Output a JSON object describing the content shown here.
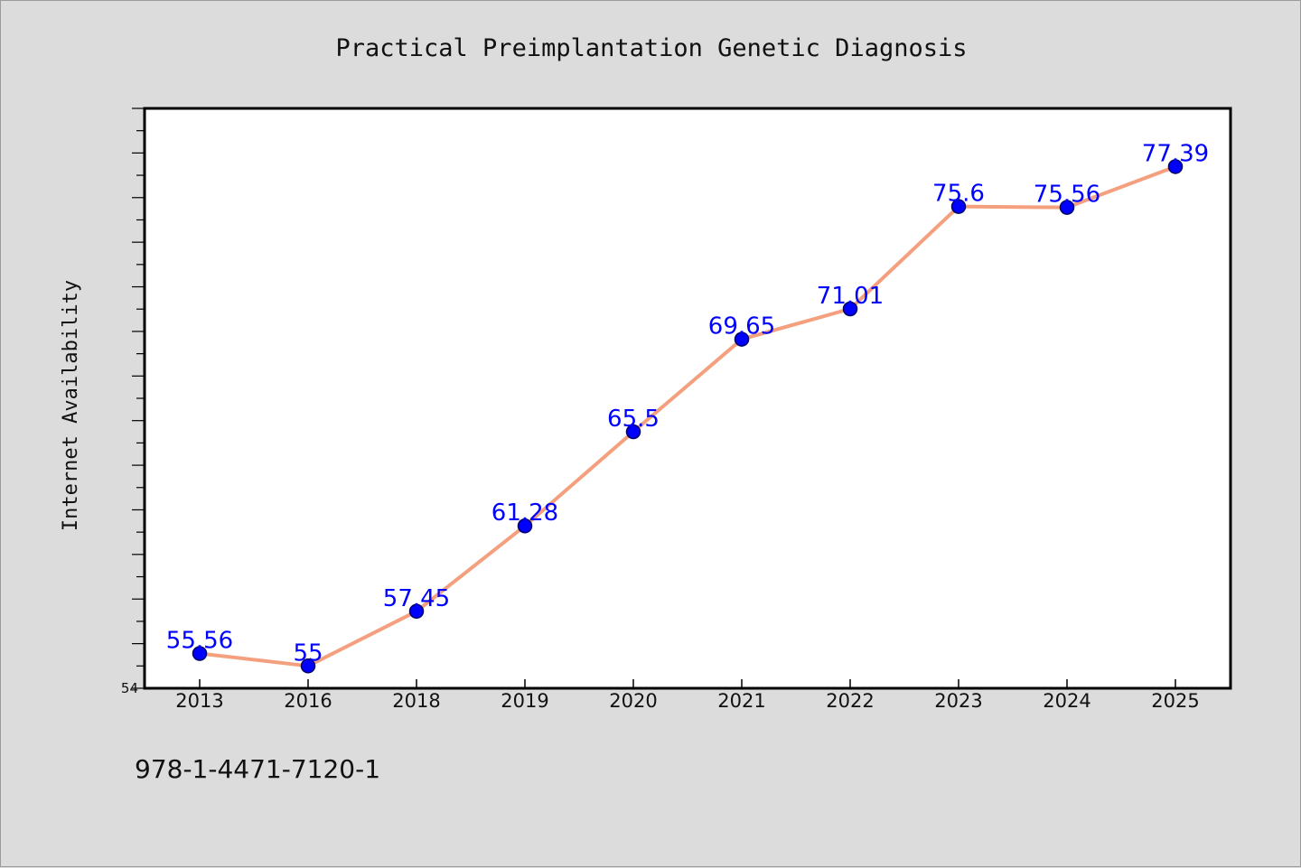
{
  "chart_data": {
    "type": "line",
    "title": "Practical Preimplantation Genetic Diagnosis",
    "xlabel": "",
    "ylabel": "Internet Availability",
    "categories": [
      "2013",
      "2016",
      "2018",
      "2019",
      "2020",
      "2021",
      "2022",
      "2023",
      "2024",
      "2025"
    ],
    "series": [
      {
        "values": [
          55.56,
          55,
          57.45,
          61.28,
          65.5,
          69.65,
          71.01,
          75.6,
          75.56,
          77.39
        ],
        "labels": [
          "55.56",
          "55",
          "57.45",
          "61.28",
          "65.5",
          "69.65",
          "71.01",
          "75.6",
          "75.56",
          "77.39"
        ]
      }
    ],
    "ylim": [
      54,
      80
    ],
    "y_tick_labels": [
      "54"
    ],
    "grid": false,
    "legend": "none",
    "colors": {
      "line": "#f4a07e",
      "marker": "#0000ff",
      "marker_edge": "#000066",
      "data_label": "#0000ff",
      "plot_background": "#ffffff",
      "figure_background": "#dcdcdc"
    }
  },
  "footer": {
    "note": "978-1-4471-7120-1"
  }
}
